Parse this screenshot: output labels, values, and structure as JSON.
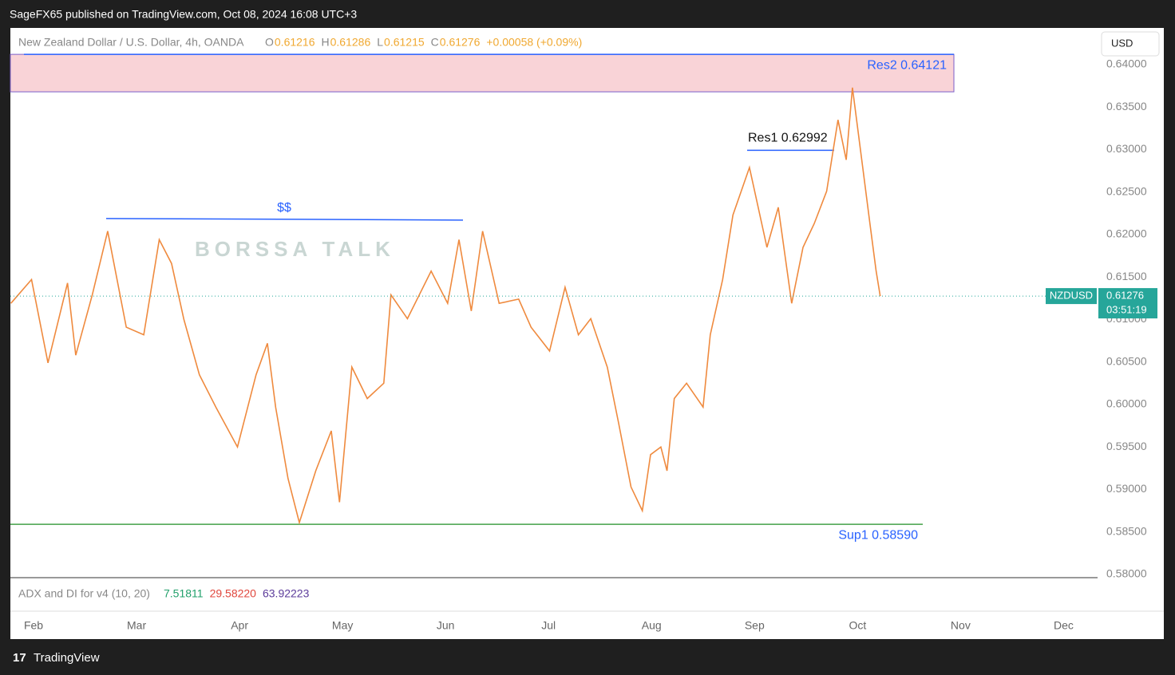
{
  "header": {
    "publisher": "SageFX65 published on TradingView.com, Oct 08, 2024 16:08 UTC+3"
  },
  "symbol_legend": {
    "name": "New Zealand Dollar / U.S. Dollar, 4h, OANDA",
    "ohlc": [
      {
        "key": "O",
        "value": "0.61216"
      },
      {
        "key": "H",
        "value": "0.61286"
      },
      {
        "key": "L",
        "value": "0.61215"
      },
      {
        "key": "C",
        "value": "0.61276"
      }
    ],
    "change": "+0.00058 (+0.09%)"
  },
  "currency_button": "USD",
  "price_tag": {
    "symbol": "NZDUSD",
    "countdown": "03:51:19"
  },
  "watermark": "BORSSA TALK",
  "indicator": {
    "title": "ADX and DI for v4 (10, 20)",
    "values": [
      "7.51811",
      "29.58220",
      "63.92223"
    ]
  },
  "footer": "TradingView",
  "chart_data": {
    "type": "line",
    "color": "#ef8a3e",
    "grid": false,
    "x": [
      1.78,
      1.98,
      2.14,
      2.33,
      2.41,
      2.57,
      2.72,
      2.9,
      3.07,
      3.22,
      3.34,
      3.46,
      3.61,
      3.77,
      3.98,
      4.16,
      4.27,
      4.35,
      4.47,
      4.58,
      4.74,
      4.89,
      4.97,
      5.09,
      5.24,
      5.4,
      5.47,
      5.63,
      5.86,
      6.02,
      6.13,
      6.25,
      6.36,
      6.52,
      6.71,
      6.83,
      7.01,
      7.16,
      7.29,
      7.41,
      7.57,
      7.68,
      7.8,
      7.91,
      7.99,
      8.09,
      8.15,
      8.22,
      8.34,
      8.5,
      8.57,
      8.69,
      8.79,
      8.95,
      9.12,
      9.23,
      9.36,
      9.47,
      9.58,
      9.7,
      9.81,
      9.89,
      9.95,
      10.05,
      10.12,
      10.18,
      10.22
    ],
    "series": [
      {
        "name": "NZDUSD",
        "values": [
          0.6119,
          0.6147,
          0.6049,
          0.6143,
          0.6058,
          0.6129,
          0.6204,
          0.6091,
          0.6082,
          0.6194,
          0.6166,
          0.61,
          0.6035,
          0.5997,
          0.595,
          0.6035,
          0.6072,
          0.5997,
          0.5913,
          0.5861,
          0.5922,
          0.5969,
          0.5885,
          0.6044,
          0.6007,
          0.6025,
          0.6129,
          0.6101,
          0.6157,
          0.6119,
          0.6194,
          0.611,
          0.6204,
          0.6119,
          0.6124,
          0.6091,
          0.6063,
          0.6138,
          0.6082,
          0.6101,
          0.6044,
          0.5978,
          0.5903,
          0.5875,
          0.5941,
          0.595,
          0.5922,
          0.6007,
          0.6025,
          0.5997,
          0.6082,
          0.6147,
          0.6223,
          0.6279,
          0.6185,
          0.6232,
          0.6119,
          0.6185,
          0.6213,
          0.6251,
          0.6335,
          0.6288,
          0.6373,
          0.6279,
          0.6213,
          0.6157,
          0.61276
        ]
      }
    ],
    "xlim": [
      1.775,
      12.33
    ],
    "xticks": [
      {
        "value": 2,
        "label": "Feb"
      },
      {
        "value": 3,
        "label": "Mar"
      },
      {
        "value": 4,
        "label": "Apr"
      },
      {
        "value": 5,
        "label": "May"
      },
      {
        "value": 6,
        "label": "Jun"
      },
      {
        "value": 7,
        "label": "Jul"
      },
      {
        "value": 8,
        "label": "Aug"
      },
      {
        "value": 9,
        "label": "Sep"
      },
      {
        "value": 10,
        "label": "Oct"
      },
      {
        "value": 11,
        "label": "Nov"
      },
      {
        "value": 12,
        "label": "Dec"
      }
    ],
    "ylim": [
      0.57962,
      0.64432
    ],
    "yticks": [
      {
        "value": 0.58,
        "label": "0.58000"
      },
      {
        "value": 0.585,
        "label": "0.58500"
      },
      {
        "value": 0.59,
        "label": "0.59000"
      },
      {
        "value": 0.595,
        "label": "0.59500"
      },
      {
        "value": 0.6,
        "label": "0.60000"
      },
      {
        "value": 0.605,
        "label": "0.60500"
      },
      {
        "value": 0.61,
        "label": "0.61000"
      },
      {
        "value": 0.615,
        "label": "0.61500"
      },
      {
        "value": 0.62,
        "label": "0.62000"
      },
      {
        "value": 0.625,
        "label": "0.62500"
      },
      {
        "value": 0.63,
        "label": "0.63000"
      },
      {
        "value": 0.635,
        "label": "0.63500"
      },
      {
        "value": 0.64,
        "label": "0.64000"
      }
    ],
    "annotations": [
      {
        "text": "Res2 0.64121",
        "value": 0.64121,
        "zone_low": 0.6368
      },
      {
        "text": "Res1 0.62992",
        "value": 0.62992
      },
      {
        "text": "$$",
        "value": 0.6218
      },
      {
        "text": "Sup1 0.58590",
        "value": 0.5859
      }
    ]
  }
}
